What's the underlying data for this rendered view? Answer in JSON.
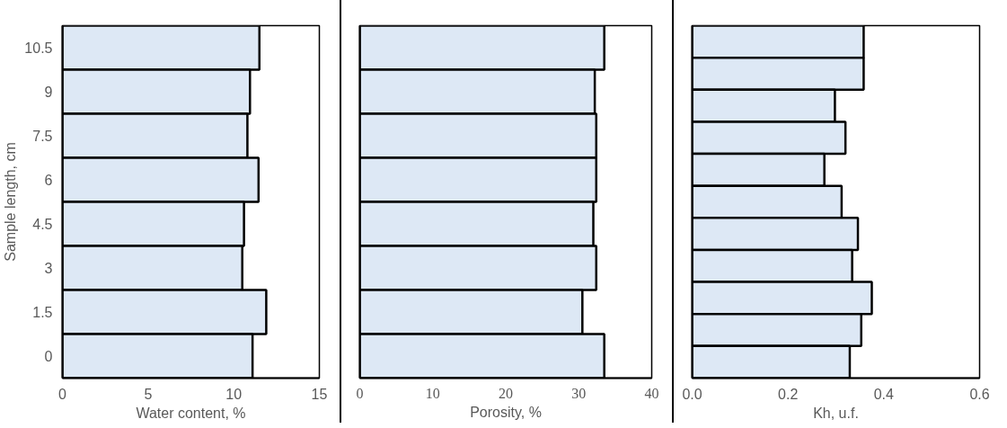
{
  "chart_data": [
    {
      "type": "bar",
      "orientation": "horizontal",
      "xlabel": "Water content, %",
      "ylabel": "Sample length, cm",
      "categories": [
        "10.5",
        "9",
        "7.5",
        "6",
        "4.5",
        "3",
        "1.5",
        "0"
      ],
      "values": [
        11.5,
        10.95,
        10.8,
        11.45,
        10.6,
        10.5,
        11.9,
        11.1
      ],
      "color": "#dde8f5",
      "xlim": [
        0,
        15
      ],
      "xticks": [
        0,
        5,
        10,
        15
      ],
      "grid": false
    },
    {
      "type": "bar",
      "orientation": "horizontal",
      "xlabel": "Porosity, %",
      "categories": [
        null,
        null,
        null,
        null,
        null,
        null,
        null,
        null
      ],
      "values": [
        33.5,
        32.2,
        32.4,
        32.4,
        32.0,
        32.4,
        30.5,
        33.5
      ],
      "color": "#dde8f5",
      "xlim": [
        0,
        40
      ],
      "xticks": [
        0,
        10,
        20,
        30,
        40
      ],
      "grid": false,
      "tick_labels": "x"
    },
    {
      "type": "bar",
      "orientation": "horizontal",
      "xlabel": "Kh, u.f.",
      "categories": [
        null,
        null,
        null,
        null,
        null,
        null,
        null,
        null,
        null,
        null,
        null
      ],
      "values": [
        0.358,
        0.358,
        0.298,
        0.32,
        0.276,
        0.312,
        0.346,
        0.334,
        0.375,
        0.353,
        0.329
      ],
      "color": "#dde8f5",
      "xlim": [
        0,
        0.6
      ],
      "xticks": [
        {
          "value": 0,
          "label": "0.0"
        },
        {
          "value": 0.2,
          "label": "0.2"
        },
        {
          "value": 0.4,
          "label": "0.4"
        },
        {
          "value": 0.6,
          "label": "0.6"
        }
      ],
      "grid": false,
      "tick_labels": "x"
    }
  ]
}
